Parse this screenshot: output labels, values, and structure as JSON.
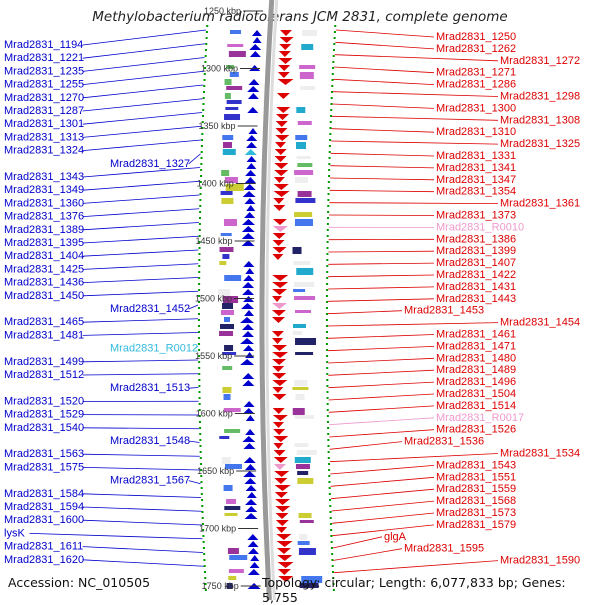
{
  "title": "Methylobacterium radiotolerans JCM 2831, complete genome",
  "footer": {
    "accession": "Accession: NC_010505",
    "topology": "Topology: circular; Length: 6,077,833 bp; Genes: 5,755"
  },
  "colors": {
    "forward": "#0000cc",
    "reverse": "#dd0000",
    "rna_forward": "#33bbdd",
    "rna_reverse": "#ee99cc",
    "backbone": "#888888",
    "tick": "#009900"
  },
  "ticks": [
    "1250 kbp",
    "1300 kbp",
    "1350 kbp",
    "1400 kbp",
    "1450 kbp",
    "1500 kbp",
    "1550 kbp",
    "1600 kbp",
    "1650 kbp",
    "1700 kbp",
    "1750 kbp"
  ],
  "left_labels": [
    "Mrad2831_1194",
    "Mrad2831_1221",
    "Mrad2831_1235",
    "Mrad2831_1255",
    "Mrad2831_1270",
    "Mrad2831_1287",
    "Mrad2831_1301",
    "Mrad2831_1313",
    "Mrad2831_1324",
    "Mrad2831_1327",
    "Mrad2831_1343",
    "Mrad2831_1349",
    "Mrad2831_1360",
    "Mrad2831_1376",
    "Mrad2831_1389",
    "Mrad2831_1395",
    "Mrad2831_1404",
    "Mrad2831_1425",
    "Mrad2831_1436",
    "Mrad2831_1450",
    "Mrad2831_1452",
    "Mrad2831_1465",
    "Mrad2831_1481",
    "Mrad2831_R0012",
    "Mrad2831_1499",
    "Mrad2831_1512",
    "Mrad2831_1513",
    "Mrad2831_1520",
    "Mrad2831_1529",
    "Mrad2831_1540",
    "Mrad2831_1548",
    "Mrad2831_1563",
    "Mrad2831_1575",
    "Mrad2831_1567",
    "Mrad2831_1584",
    "Mrad2831_1594",
    "Mrad2831_1600",
    "lysK",
    "Mrad2831_1611",
    "Mrad2831_1620"
  ],
  "right_labels": [
    "Mrad2831_1250",
    "Mrad2831_1262",
    "Mrad2831_1272",
    "Mrad2831_1271",
    "Mrad2831_1286",
    "Mrad2831_1298",
    "Mrad2831_1300",
    "Mrad2831_1308",
    "Mrad2831_1310",
    "Mrad2831_1325",
    "Mrad2831_1331",
    "Mrad2831_1341",
    "Mrad2831_1347",
    "Mrad2831_1354",
    "Mrad2831_1361",
    "Mrad2831_1373",
    "Mrad2831_R0010",
    "Mrad2831_1386",
    "Mrad2831_1399",
    "Mrad2831_1407",
    "Mrad2831_1422",
    "Mrad2831_1431",
    "Mrad2831_1443",
    "Mrad2831_1453",
    "Mrad2831_1454",
    "Mrad2831_1461",
    "Mrad2831_1471",
    "Mrad2831_1480",
    "Mrad2831_1489",
    "Mrad2831_1496",
    "Mrad2831_1504",
    "Mrad2831_1514",
    "Mrad2831_R0017",
    "Mrad2831_1526",
    "Mrad2831_1536",
    "Mrad2831_1534",
    "Mrad2831_1543",
    "Mrad2831_1551",
    "Mrad2831_1559",
    "Mrad2831_1568",
    "Mrad2831_1573",
    "Mrad2831_1579",
    "glgA",
    "Mrad2831_1595",
    "Mrad2831_1590"
  ]
}
